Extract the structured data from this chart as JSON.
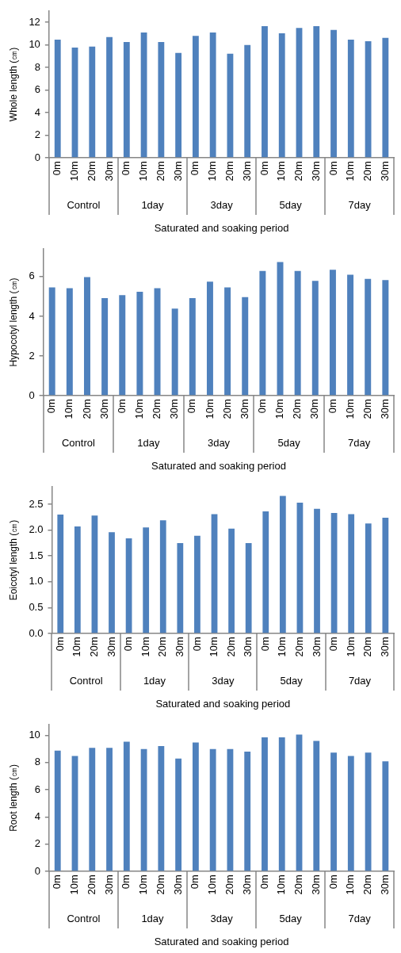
{
  "chart_data": [
    {
      "type": "bar",
      "xlabel": "Saturated and soaking period",
      "ylabel": "Whole length (㎝)",
      "categories": [
        "0m",
        "10m",
        "20m",
        "30m",
        "0m",
        "10m",
        "20m",
        "30m",
        "0m",
        "10m",
        "20m",
        "30m",
        "0m",
        "10m",
        "20m",
        "30m",
        "0m",
        "10m",
        "20m",
        "30m"
      ],
      "annotations": [
        "Control",
        "1day",
        "3day",
        "5day",
        "7day"
      ],
      "color": "#4f81bd",
      "values": [
        10.46,
        9.76,
        9.85,
        10.69,
        10.25,
        11.09,
        10.25,
        9.29,
        10.79,
        11.09,
        9.22,
        9.99,
        11.65,
        11.02,
        11.49,
        11.65,
        11.32,
        10.46,
        10.32,
        10.62
      ],
      "ylim": [
        0,
        13
      ],
      "yticks": [
        0,
        2,
        4,
        6,
        8,
        10,
        12
      ],
      "grid": false,
      "legend": false
    },
    {
      "type": "bar",
      "xlabel": "Saturated and soaking period",
      "ylabel": "Hypocotyl length (㎝)",
      "categories": [
        "0m",
        "10m",
        "20m",
        "30m",
        "0m",
        "10m",
        "20m",
        "30m",
        "0m",
        "10m",
        "20m",
        "30m",
        "0m",
        "10m",
        "20m",
        "30m",
        "0m",
        "10m",
        "20m",
        "30m"
      ],
      "annotations": [
        "Control",
        "1day",
        "3day",
        "5day",
        "7day"
      ],
      "color": "#4f81bd",
      "values": [
        5.46,
        5.42,
        5.97,
        4.92,
        5.07,
        5.24,
        5.42,
        4.39,
        4.92,
        5.74,
        5.46,
        4.97,
        6.28,
        6.73,
        6.28,
        5.78,
        6.34,
        6.09,
        5.88,
        5.82
      ],
      "ylim": [
        0,
        7.4
      ],
      "yticks": [
        0,
        2,
        4,
        6
      ],
      "grid": false,
      "legend": false
    },
    {
      "type": "bar",
      "xlabel": "Saturated and soaking period",
      "ylabel": "Eoicotyl length (㎝)",
      "categories": [
        "0m",
        "10m",
        "20m",
        "30m",
        "0m",
        "10m",
        "20m",
        "30m",
        "0m",
        "10m",
        "20m",
        "30m",
        "0m",
        "10m",
        "20m",
        "30m",
        "0m",
        "10m",
        "20m",
        "30m"
      ],
      "annotations": [
        "Control",
        "1day",
        "3day",
        "5day",
        "7day"
      ],
      "color": "#4f81bd",
      "values": [
        2.3,
        2.07,
        2.28,
        1.96,
        1.84,
        2.05,
        2.19,
        1.75,
        1.89,
        2.31,
        2.03,
        1.75,
        2.36,
        2.66,
        2.53,
        2.41,
        2.33,
        2.31,
        2.13,
        2.24
      ],
      "ylim": [
        0,
        2.84
      ],
      "yticks": [
        {
          "value": 0,
          "label": "0.0"
        },
        {
          "value": 0.5,
          "label": "0.5"
        },
        {
          "value": 1,
          "label": "1.0"
        },
        {
          "value": 1.5,
          "label": "1.5"
        },
        {
          "value": 2,
          "label": "2.0"
        },
        {
          "value": 2.5,
          "label": "2.5"
        }
      ],
      "grid": false,
      "legend": false
    },
    {
      "type": "bar",
      "xlabel": "Saturated and soaking period",
      "ylabel": "Root length (㎝)",
      "categories": [
        "0m",
        "10m",
        "20m",
        "30m",
        "0m",
        "10m",
        "20m",
        "30m",
        "0m",
        "10m",
        "20m",
        "30m",
        "0m",
        "10m",
        "20m",
        "30m",
        "0m",
        "10m",
        "20m",
        "30m"
      ],
      "annotations": [
        "Control",
        "1day",
        "3day",
        "5day",
        "7day"
      ],
      "color": "#4f81bd",
      "values": [
        8.88,
        8.49,
        9.08,
        9.08,
        9.53,
        9.0,
        9.21,
        8.29,
        9.47,
        9.0,
        9.0,
        8.8,
        9.86,
        9.86,
        10.06,
        9.59,
        8.74,
        8.49,
        8.74,
        8.09
      ],
      "ylim": [
        0,
        10.8
      ],
      "yticks": [
        0,
        2,
        4,
        6,
        8,
        10
      ],
      "grid": false,
      "legend": false
    }
  ]
}
